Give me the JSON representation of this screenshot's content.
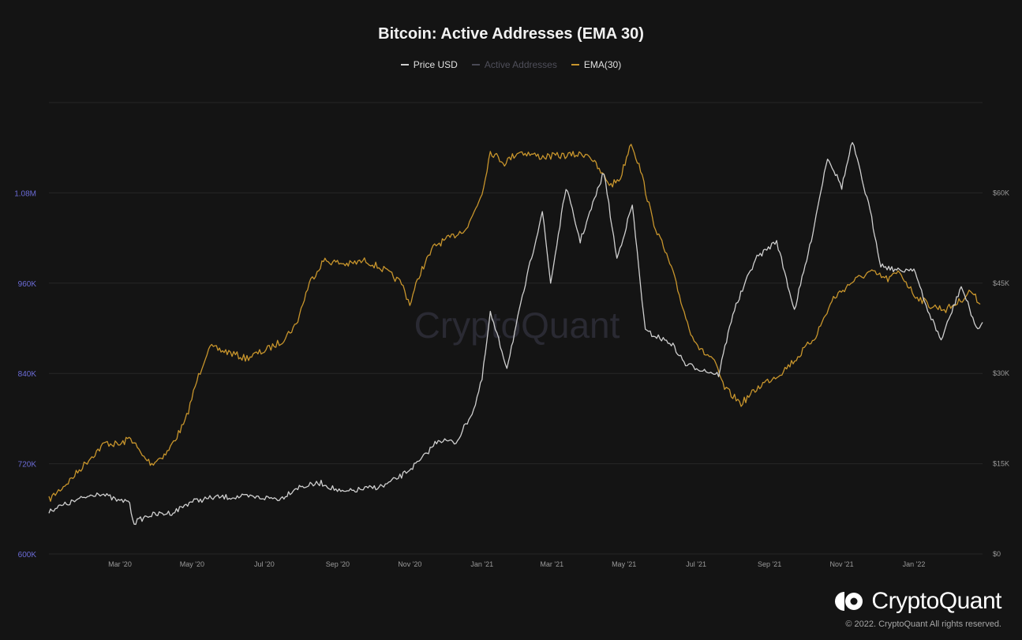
{
  "chart_data": {
    "type": "line",
    "title": "Bitcoin: Active Addresses (EMA 30)",
    "watermark": "CryptoQuant",
    "legend": [
      {
        "name": "Price USD",
        "color": "#cfcfcf"
      },
      {
        "name": "Active Addresses",
        "color": "#4a4a55"
      },
      {
        "name": "EMA(30)",
        "color": "#c8952c"
      }
    ],
    "legend_placement": "top-center",
    "grid": true,
    "x_range": [
      "2020-01-01",
      "2022-02-28"
    ],
    "x_ticks": [
      {
        "date": "2020-03-01",
        "label": "Mar '20"
      },
      {
        "date": "2020-05-01",
        "label": "May '20"
      },
      {
        "date": "2020-07-01",
        "label": "Jul '20"
      },
      {
        "date": "2020-09-01",
        "label": "Sep '20"
      },
      {
        "date": "2020-11-01",
        "label": "Nov '20"
      },
      {
        "date": "2021-01-01",
        "label": "Jan '21"
      },
      {
        "date": "2021-03-01",
        "label": "Mar '21"
      },
      {
        "date": "2021-05-01",
        "label": "May '21"
      },
      {
        "date": "2021-07-01",
        "label": "Jul '21"
      },
      {
        "date": "2021-09-01",
        "label": "Sep '21"
      },
      {
        "date": "2021-11-01",
        "label": "Nov '21"
      },
      {
        "date": "2022-01-01",
        "label": "Jan '22"
      }
    ],
    "y_left": {
      "range": [
        600000,
        1200000
      ],
      "ticks": [
        {
          "value": 600000,
          "label": "600K"
        },
        {
          "value": 720000,
          "label": "720K"
        },
        {
          "value": 840000,
          "label": "840K"
        },
        {
          "value": 960000,
          "label": "960K"
        },
        {
          "value": 1080000,
          "label": "1.08M"
        }
      ],
      "color": "#6b6bd6"
    },
    "y_right": {
      "range": [
        0,
        75000
      ],
      "ticks": [
        {
          "value": 0,
          "label": "$0"
        },
        {
          "value": 15000,
          "label": "$15K"
        },
        {
          "value": 30000,
          "label": "$30K"
        },
        {
          "value": 45000,
          "label": "$45K"
        },
        {
          "value": 60000,
          "label": "$60K"
        }
      ],
      "color": "#9a9a9a"
    },
    "series": [
      {
        "name": "EMA(30)",
        "axis": "left",
        "color": "#c8952c",
        "points": [
          [
            "2020-01-01",
            672000
          ],
          [
            "2020-01-20",
            700000
          ],
          [
            "2020-02-05",
            728000
          ],
          [
            "2020-02-18",
            748000
          ],
          [
            "2020-03-01",
            745000
          ],
          [
            "2020-03-10",
            755000
          ],
          [
            "2020-03-20",
            730000
          ],
          [
            "2020-03-28",
            720000
          ],
          [
            "2020-04-10",
            735000
          ],
          [
            "2020-04-25",
            775000
          ],
          [
            "2020-05-05",
            830000
          ],
          [
            "2020-05-15",
            875000
          ],
          [
            "2020-06-01",
            868000
          ],
          [
            "2020-06-15",
            860000
          ],
          [
            "2020-07-01",
            870000
          ],
          [
            "2020-07-15",
            882000
          ],
          [
            "2020-07-28",
            905000
          ],
          [
            "2020-08-08",
            960000
          ],
          [
            "2020-08-20",
            990000
          ],
          [
            "2020-09-10",
            985000
          ],
          [
            "2020-09-25",
            990000
          ],
          [
            "2020-10-10",
            978000
          ],
          [
            "2020-10-25",
            960000
          ],
          [
            "2020-11-01",
            932000
          ],
          [
            "2020-11-10",
            975000
          ],
          [
            "2020-11-22",
            1010000
          ],
          [
            "2020-12-05",
            1020000
          ],
          [
            "2020-12-20",
            1035000
          ],
          [
            "2021-01-01",
            1080000
          ],
          [
            "2021-01-08",
            1135000
          ],
          [
            "2021-01-20",
            1120000
          ],
          [
            "2021-02-01",
            1135000
          ],
          [
            "2021-02-20",
            1128000
          ],
          [
            "2021-03-15",
            1130000
          ],
          [
            "2021-04-01",
            1132000
          ],
          [
            "2021-04-10",
            1110000
          ],
          [
            "2021-04-20",
            1090000
          ],
          [
            "2021-04-28",
            1100000
          ],
          [
            "2021-05-07",
            1148000
          ],
          [
            "2021-05-15",
            1110000
          ],
          [
            "2021-05-25",
            1045000
          ],
          [
            "2021-06-10",
            980000
          ],
          [
            "2021-06-25",
            900000
          ],
          [
            "2021-07-05",
            870000
          ],
          [
            "2021-07-15",
            860000
          ],
          [
            "2021-07-25",
            820000
          ],
          [
            "2021-08-08",
            800000
          ],
          [
            "2021-08-25",
            825000
          ],
          [
            "2021-09-10",
            840000
          ],
          [
            "2021-09-25",
            862000
          ],
          [
            "2021-10-10",
            890000
          ],
          [
            "2021-10-25",
            940000
          ],
          [
            "2021-11-10",
            962000
          ],
          [
            "2021-11-25",
            975000
          ],
          [
            "2021-12-10",
            965000
          ],
          [
            "2021-12-20",
            975000
          ],
          [
            "2022-01-01",
            945000
          ],
          [
            "2022-01-15",
            930000
          ],
          [
            "2022-01-28",
            925000
          ],
          [
            "2022-02-08",
            935000
          ],
          [
            "2022-02-18",
            950000
          ],
          [
            "2022-02-26",
            932000
          ]
        ]
      },
      {
        "name": "Price USD",
        "axis": "right",
        "color": "#cfcfcf",
        "points": [
          [
            "2020-01-01",
            7200
          ],
          [
            "2020-01-20",
            8600
          ],
          [
            "2020-02-12",
            10200
          ],
          [
            "2020-03-01",
            8700
          ],
          [
            "2020-03-08",
            9000
          ],
          [
            "2020-03-13",
            5200
          ],
          [
            "2020-03-25",
            6400
          ],
          [
            "2020-04-15",
            6900
          ],
          [
            "2020-04-30",
            8700
          ],
          [
            "2020-05-20",
            9400
          ],
          [
            "2020-06-15",
            9500
          ],
          [
            "2020-07-15",
            9200
          ],
          [
            "2020-07-28",
            11000
          ],
          [
            "2020-08-18",
            11800
          ],
          [
            "2020-09-05",
            10200
          ],
          [
            "2020-09-20",
            10700
          ],
          [
            "2020-10-10",
            11300
          ],
          [
            "2020-10-25",
            13000
          ],
          [
            "2020-11-10",
            15500
          ],
          [
            "2020-11-25",
            19000
          ],
          [
            "2020-12-10",
            18500
          ],
          [
            "2020-12-25",
            24000
          ],
          [
            "2021-01-01",
            29000
          ],
          [
            "2021-01-08",
            40000
          ],
          [
            "2021-01-22",
            31000
          ],
          [
            "2021-02-08",
            46000
          ],
          [
            "2021-02-21",
            57000
          ],
          [
            "2021-02-28",
            45000
          ],
          [
            "2021-03-13",
            61000
          ],
          [
            "2021-03-25",
            52000
          ],
          [
            "2021-04-14",
            63500
          ],
          [
            "2021-04-25",
            49000
          ],
          [
            "2021-05-08",
            58000
          ],
          [
            "2021-05-19",
            37000
          ],
          [
            "2021-06-10",
            35000
          ],
          [
            "2021-06-22",
            31500
          ],
          [
            "2021-07-20",
            29800
          ],
          [
            "2021-08-01",
            40000
          ],
          [
            "2021-08-20",
            49000
          ],
          [
            "2021-09-07",
            52000
          ],
          [
            "2021-09-22",
            40500
          ],
          [
            "2021-10-05",
            51000
          ],
          [
            "2021-10-20",
            66000
          ],
          [
            "2021-11-01",
            61000
          ],
          [
            "2021-11-10",
            68500
          ],
          [
            "2021-11-25",
            57000
          ],
          [
            "2021-12-04",
            48000
          ],
          [
            "2021-12-20",
            47000
          ],
          [
            "2022-01-01",
            47500
          ],
          [
            "2022-01-10",
            41800
          ],
          [
            "2022-01-24",
            35500
          ],
          [
            "2022-02-10",
            44500
          ],
          [
            "2022-02-24",
            37000
          ],
          [
            "2022-02-28",
            38500
          ]
        ]
      }
    ]
  },
  "footer": {
    "brand": "CryptoQuant",
    "copyright": "© 2022. CryptoQuant All rights reserved."
  }
}
